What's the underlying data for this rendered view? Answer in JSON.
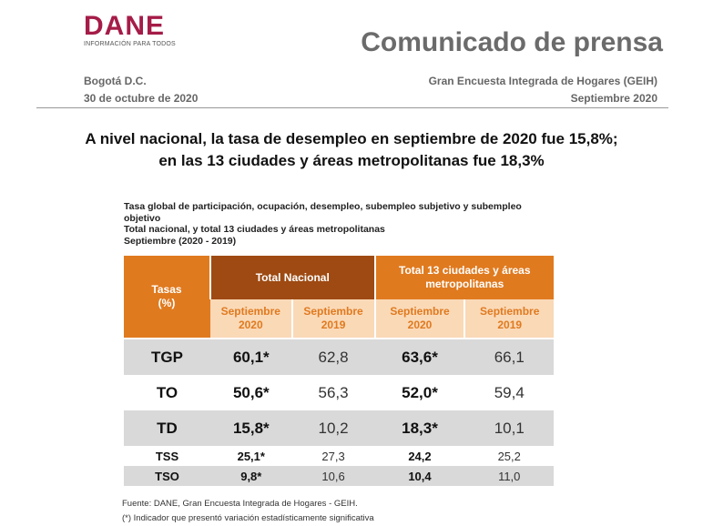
{
  "header": {
    "logo_word": "DANE",
    "logo_tagline": "INFORMACIÓN PARA TODOS",
    "press_title": "Comunicado de prensa",
    "city": "Bogotá D.C.",
    "date": "30 de octubre de 2020",
    "survey": "Gran Encuesta Integrada de Hogares (GEIH)",
    "period": "Septiembre 2020"
  },
  "headline": {
    "line1": "A nivel nacional, la tasa de desempleo en septiembre de 2020 fue 15,8%;",
    "line2": "en las 13 ciudades y áreas metropolitanas fue 18,3%"
  },
  "caption": {
    "line1": "Tasa global de participación, ocupación, desempleo, subempleo subjetivo y subempleo",
    "line2": "objetivo",
    "line3": "Total nacional, y total 13 ciudades y áreas metropolitanas",
    "line4": "Septiembre (2020 - 2019)"
  },
  "table": {
    "col_rates_line1": "Tasas",
    "col_rates_line2": "(%)",
    "group_national": "Total Nacional",
    "group_13_line1": "Total 13 ciudades y áreas",
    "group_13_line2": "metropolitanas",
    "sub_label": "Septiembre",
    "year_2020": "2020",
    "year_2019": "2019",
    "rows": [
      {
        "label": "TGP",
        "nac_2020": "60,1*",
        "nac_2019": "62,8",
        "c13_2020": "63,6*",
        "c13_2019": "66,1"
      },
      {
        "label": "TO",
        "nac_2020": "50,6*",
        "nac_2019": "56,3",
        "c13_2020": "52,0*",
        "c13_2019": "59,4"
      },
      {
        "label": "TD",
        "nac_2020": "15,8*",
        "nac_2019": "10,2",
        "c13_2020": "18,3*",
        "c13_2019": "10,1"
      },
      {
        "label": "TSS",
        "nac_2020": "25,1*",
        "nac_2019": "27,3",
        "c13_2020": "24,2",
        "c13_2019": "25,2"
      },
      {
        "label": "TSO",
        "nac_2020": "9,8*",
        "nac_2019": "10,6",
        "c13_2020": "10,4",
        "c13_2019": "11,0"
      }
    ]
  },
  "footer": {
    "source": "Fuente: DANE, Gran Encuesta Integrada de Hogares - GEIH.",
    "note": "(*) Indicador que presentó variación estadísticamente significativa"
  },
  "colors": {
    "brand": "#a51c48",
    "header_orange": "#e07a1f",
    "header_brown": "#9e4a12",
    "subheader_peach": "#fad9b7",
    "row_grey": "#d9d9d9"
  }
}
